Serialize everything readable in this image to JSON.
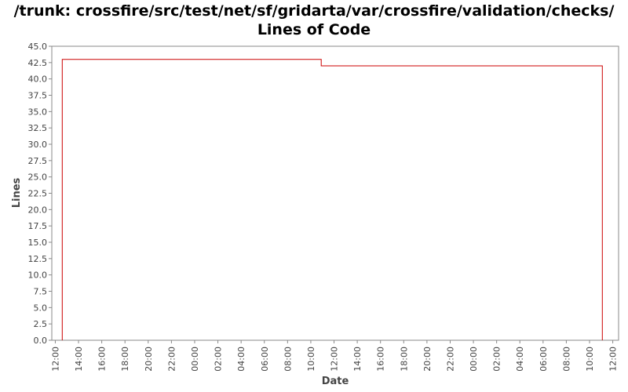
{
  "chart_data": {
    "type": "line",
    "title": "/trunk: crossfire/src/test/net/sf/gridarta/var/crossfire/validation/checks/",
    "subtitle": "Lines of Code",
    "xlabel": "Date",
    "ylabel": "Lines",
    "ylim": [
      0,
      45
    ],
    "yticks": [
      "0.0",
      "2.5",
      "5.0",
      "7.5",
      "10.0",
      "12.5",
      "15.0",
      "17.5",
      "20.0",
      "22.5",
      "25.0",
      "27.5",
      "30.0",
      "32.5",
      "35.0",
      "37.5",
      "40.0",
      "42.5",
      "45.0"
    ],
    "xticks": [
      "12:00",
      "14:00",
      "16:00",
      "18:00",
      "20:00",
      "22:00",
      "00:00",
      "02:00",
      "04:00",
      "06:00",
      "08:00",
      "10:00",
      "12:00",
      "14:00",
      "16:00",
      "18:00",
      "20:00",
      "22:00",
      "00:00",
      "02:00",
      "04:00",
      "06:00",
      "08:00",
      "10:00",
      "12:00"
    ],
    "xlim_hours": [
      -0.3,
      48.5
    ],
    "grid": false,
    "legend": "none",
    "line_style": "step",
    "series": [
      {
        "color": "#cc0000",
        "points": [
          {
            "hour": 0.6,
            "value": 0
          },
          {
            "hour": 0.6,
            "value": 43
          },
          {
            "hour": 22.9,
            "value": 43
          },
          {
            "hour": 22.9,
            "value": 42
          },
          {
            "hour": 47.1,
            "value": 42
          },
          {
            "hour": 47.1,
            "value": 0
          }
        ]
      }
    ]
  }
}
